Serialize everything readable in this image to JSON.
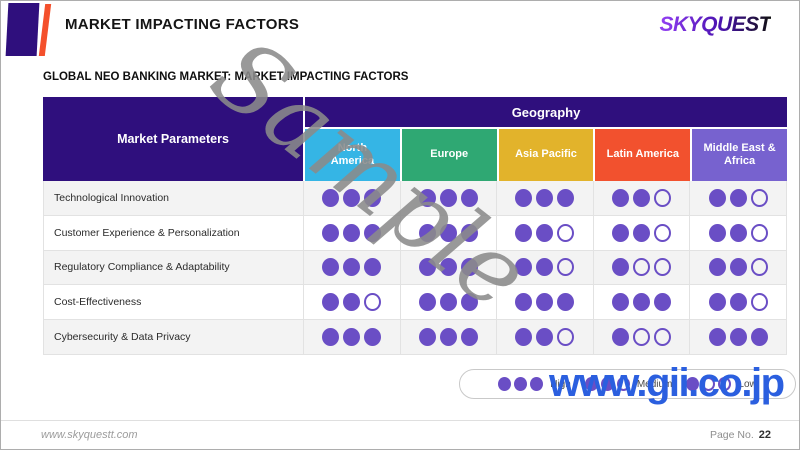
{
  "header": {
    "title": "MARKET IMPACTING FACTORS",
    "brand_logo": "SKYQUEST"
  },
  "slide_title": "GLOBAL NEO BANKING MARKET: MARKET IMPACTING FACTORS",
  "table": {
    "corner_header": "Market Parameters",
    "group_header": "Geography",
    "rating_scale_max": 3,
    "columns": [
      {
        "label": "North America",
        "lines": [
          "North",
          "America"
        ],
        "color": "#35B5E5"
      },
      {
        "label": "Europe",
        "lines": [
          "Europe"
        ],
        "color": "#2FA873"
      },
      {
        "label": "Asia Pacific",
        "lines": [
          "Asia Pacific"
        ],
        "color": "#E2B32B"
      },
      {
        "label": "Latin America",
        "lines": [
          "Latin America"
        ],
        "color": "#F2512E"
      },
      {
        "label": "Middle East & Africa",
        "lines": [
          "Middle East &",
          "Africa"
        ],
        "color": "#7762CF"
      }
    ],
    "rows": [
      {
        "label": "Technological Innovation",
        "ratings": [
          3,
          3,
          3,
          2,
          2
        ]
      },
      {
        "label": "Customer Experience & Personalization",
        "ratings": [
          3,
          3,
          2,
          2,
          2
        ]
      },
      {
        "label": "Regulatory Compliance & Adaptability",
        "ratings": [
          3,
          3,
          2,
          1,
          2
        ]
      },
      {
        "label": "Cost-Effectiveness",
        "ratings": [
          2,
          3,
          3,
          3,
          2
        ]
      },
      {
        "label": "Cybersecurity & Data Privacy",
        "ratings": [
          3,
          3,
          2,
          1,
          3
        ]
      }
    ]
  },
  "legend": {
    "dots_total": 3,
    "items": [
      {
        "label": "High",
        "filled": 3
      },
      {
        "label": "Medium",
        "filled": 2
      },
      {
        "label": "Low",
        "filled": 1
      }
    ]
  },
  "watermarks": {
    "sample_text": "Sample",
    "distributor_text": "www.gii.co.jp"
  },
  "footer": {
    "website": "www.skyquestt.com",
    "page_label": "Page No.",
    "page_number": "22"
  },
  "colors": {
    "header_purple": "#2F0F7D",
    "dot_purple": "#6A4EC5",
    "row_stripe": "#F3F3F3",
    "accent_orange": "#F4502C",
    "watermark_gray": "#8B8B8B",
    "watermark_blue": "#2B5FDF"
  }
}
